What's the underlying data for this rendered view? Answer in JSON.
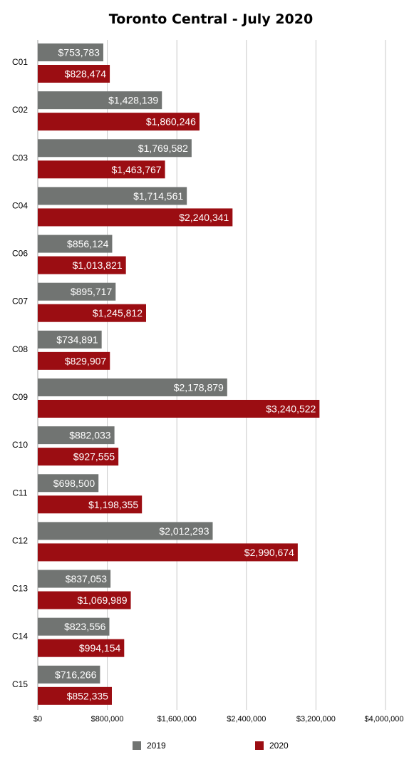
{
  "chart_data": {
    "type": "bar",
    "orientation": "horizontal",
    "title": "Toronto Central - July 2020",
    "xlabel": "",
    "ylabel": "",
    "xlim": [
      0,
      4000000
    ],
    "x_ticks": [
      0,
      800000,
      1600000,
      2400000,
      3200000,
      4000000
    ],
    "x_tick_labels": [
      "$0",
      "$800,000",
      "$1,600,000",
      "$2,400,000",
      "$3,200,000",
      "$4,000,000"
    ],
    "grid": true,
    "legend_position": "bottom",
    "categories": [
      "C01",
      "C02",
      "C03",
      "C04",
      "C06",
      "C07",
      "C08",
      "C09",
      "C10",
      "C11",
      "C12",
      "C13",
      "C14",
      "C15"
    ],
    "series": [
      {
        "name": "2019",
        "color": "#717472",
        "values": [
          753783,
          1428139,
          1769582,
          1714561,
          856124,
          895717,
          734891,
          2178879,
          882033,
          698500,
          2012293,
          837053,
          823556,
          716266
        ],
        "labels": [
          "$753,783",
          "$1,428,139",
          "$1,769,582",
          "$1,714,561",
          "$856,124",
          "$895,717",
          "$734,891",
          "$2,178,879",
          "$882,033",
          "$698,500",
          "$2,012,293",
          "$837,053",
          "$823,556",
          "$716,266"
        ]
      },
      {
        "name": "2020",
        "color": "#9b0d12",
        "values": [
          828474,
          1860246,
          1463767,
          2240341,
          1013821,
          1245812,
          829907,
          3240522,
          927555,
          1198355,
          2990674,
          1069989,
          994154,
          852335
        ],
        "labels": [
          "$828,474",
          "$1,860,246",
          "$1,463,767",
          "$2,240,341",
          "$1,013,821",
          "$1,245,812",
          "$829,907",
          "$3,240,522",
          "$927,555",
          "$1,198,355",
          "$2,990,674",
          "$1,069,989",
          "$994,154",
          "$852,335"
        ]
      }
    ]
  }
}
